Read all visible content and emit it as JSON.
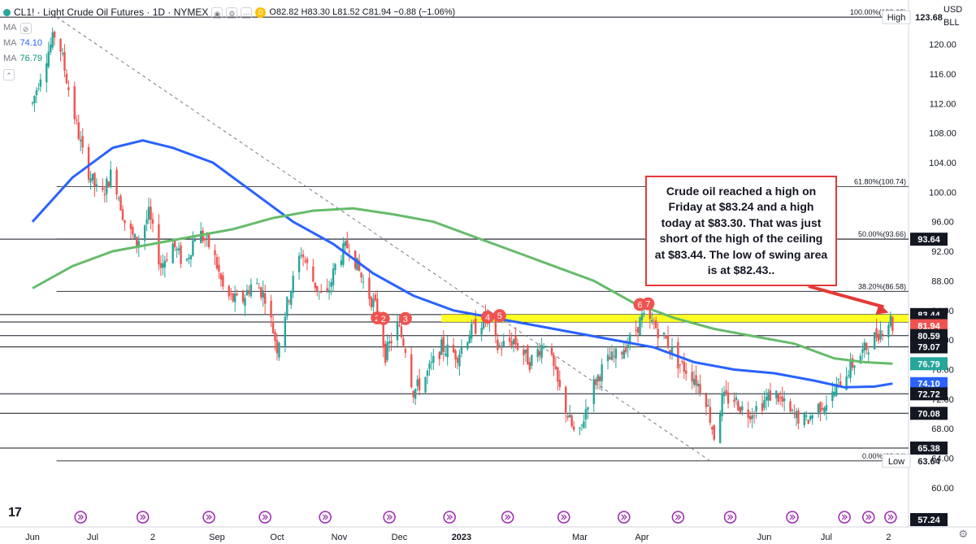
{
  "header": {
    "symbol": "CL1! · Light Crude Oil Futures · 1D · NYMEX",
    "ohlc": "O82.82 H83.30 L81.52 C81.94 −0.88 (−1.06%)",
    "open": "O82.82",
    "high": "H83.30",
    "low": "L81.52",
    "close": "C81.94",
    "change": "−0.88 (−1.06%)",
    "badge": "D"
  },
  "indicators": [
    {
      "label": "MA",
      "value": ""
    },
    {
      "label": "MA",
      "value": "74.10"
    },
    {
      "label": "MA",
      "value": "76.79"
    }
  ],
  "currency": "USD",
  "unit": "BLL",
  "annotation": "Crude oil reached a high on Friday at $83.24 and a high today at $83.30. That was just short of the high of the ceiling at $83.44.   The  low of swing area is at $82.43..",
  "colors": {
    "up": "#26a69a",
    "down": "#ef5350",
    "ma_blue": "#2962ff",
    "ma_green": "#66bb6a",
    "zone": "#ffff00",
    "annotation_border": "#e53935",
    "level_label_bg": "#131722"
  },
  "chart_data": {
    "type": "candlestick",
    "ylim": [
      57.24,
      126
    ],
    "y_ticks": [
      60,
      64,
      68,
      72,
      76,
      80,
      84,
      88,
      92,
      96,
      100,
      104,
      108,
      112,
      116,
      120
    ],
    "y_tick_labels": [
      "60.00",
      "64.00",
      "68.00",
      "72.00",
      "76.00",
      "80.00",
      "84.00",
      "88.00",
      "92.00",
      "96.00",
      "100.00",
      "104.00",
      "108.00",
      "112.00",
      "116.00",
      "120.00"
    ],
    "x_labels": [
      "Jun",
      "Jul",
      "2",
      "Sep",
      "Oct",
      "Nov",
      "Dec",
      "2023",
      "Mar",
      "Apr",
      "Jun",
      "Jul",
      "2"
    ],
    "x_label_days": [
      0,
      30,
      60,
      92,
      122,
      153,
      183,
      214,
      273,
      304,
      365,
      396,
      427
    ],
    "last_day": 429,
    "price_path": [
      [
        0,
        112
      ],
      [
        5,
        117
      ],
      [
        12,
        122
      ],
      [
        18,
        114
      ],
      [
        26,
        104
      ],
      [
        34,
        99
      ],
      [
        40,
        103
      ],
      [
        46,
        96
      ],
      [
        52,
        93
      ],
      [
        58,
        97
      ],
      [
        64,
        90
      ],
      [
        70,
        93
      ],
      [
        76,
        90
      ],
      [
        82,
        95
      ],
      [
        90,
        92
      ],
      [
        96,
        86
      ],
      [
        104,
        85
      ],
      [
        110,
        88
      ],
      [
        116,
        86
      ],
      [
        122,
        79
      ],
      [
        128,
        86
      ],
      [
        134,
        92
      ],
      [
        140,
        88
      ],
      [
        146,
        85
      ],
      [
        152,
        91
      ],
      [
        158,
        93
      ],
      [
        166,
        87
      ],
      [
        172,
        84
      ],
      [
        176,
        78
      ],
      [
        182,
        82
      ],
      [
        186,
        79
      ],
      [
        190,
        73
      ],
      [
        196,
        75
      ],
      [
        204,
        79
      ],
      [
        212,
        78
      ],
      [
        218,
        81
      ],
      [
        226,
        83
      ],
      [
        232,
        79
      ],
      [
        240,
        80
      ],
      [
        248,
        77
      ],
      [
        256,
        80
      ],
      [
        262,
        74
      ],
      [
        268,
        69
      ],
      [
        272,
        66
      ],
      [
        278,
        73
      ],
      [
        286,
        77
      ],
      [
        292,
        78
      ],
      [
        298,
        80
      ],
      [
        304,
        83
      ],
      [
        310,
        82
      ],
      [
        316,
        80
      ],
      [
        322,
        77
      ],
      [
        330,
        75
      ],
      [
        336,
        72
      ],
      [
        340,
        67
      ],
      [
        344,
        72
      ],
      [
        350,
        72
      ],
      [
        356,
        70
      ],
      [
        362,
        71
      ],
      [
        370,
        73
      ],
      [
        378,
        70
      ],
      [
        386,
        69
      ],
      [
        392,
        71
      ],
      [
        398,
        72
      ],
      [
        404,
        75
      ],
      [
        410,
        77
      ],
      [
        416,
        79
      ],
      [
        422,
        81
      ],
      [
        428,
        82.8
      ],
      [
        429,
        81.9
      ]
    ],
    "series": [
      {
        "name": "MA",
        "value_label": "74.10",
        "color": "#2962ff",
        "points": [
          [
            0,
            96
          ],
          [
            20,
            102
          ],
          [
            40,
            106
          ],
          [
            55,
            107
          ],
          [
            70,
            106
          ],
          [
            90,
            104
          ],
          [
            110,
            100
          ],
          [
            130,
            96
          ],
          [
            150,
            93
          ],
          [
            170,
            89
          ],
          [
            190,
            86
          ],
          [
            210,
            84
          ],
          [
            230,
            83
          ],
          [
            250,
            82
          ],
          [
            270,
            81
          ],
          [
            290,
            80
          ],
          [
            310,
            79
          ],
          [
            330,
            77
          ],
          [
            350,
            76
          ],
          [
            370,
            75.5
          ],
          [
            390,
            74.5
          ],
          [
            405,
            73.6
          ],
          [
            420,
            73.7
          ],
          [
            429,
            74.1
          ]
        ]
      },
      {
        "name": "MA",
        "value_label": "76.79",
        "color": "#66bb6a",
        "points": [
          [
            0,
            87
          ],
          [
            20,
            90
          ],
          [
            40,
            92
          ],
          [
            60,
            93
          ],
          [
            80,
            94
          ],
          [
            100,
            95
          ],
          [
            120,
            96.5
          ],
          [
            140,
            97.5
          ],
          [
            160,
            97.8
          ],
          [
            180,
            97
          ],
          [
            200,
            96
          ],
          [
            220,
            94
          ],
          [
            240,
            92
          ],
          [
            260,
            90
          ],
          [
            280,
            88
          ],
          [
            300,
            85
          ],
          [
            320,
            83
          ],
          [
            340,
            81.5
          ],
          [
            360,
            80.5
          ],
          [
            380,
            79.5
          ],
          [
            400,
            77.5
          ],
          [
            415,
            77
          ],
          [
            429,
            76.8
          ]
        ]
      }
    ],
    "horizontal_levels": [
      123.68,
      93.64,
      83.44,
      82.43,
      80.59,
      79.07,
      72.72,
      70.08,
      65.38
    ],
    "right_labels": [
      {
        "value": 123.68,
        "text": "123.68",
        "style": "plain",
        "tag": "High"
      },
      {
        "value": 93.64,
        "text": "93.64",
        "style": "dark"
      },
      {
        "value": 83.44,
        "text": "83.44",
        "style": "dark"
      },
      {
        "value": 82.43,
        "text": "82.43",
        "style": "dark"
      },
      {
        "value": 81.94,
        "text": "81.94",
        "style": "red"
      },
      {
        "value": 80.59,
        "text": "80.59",
        "style": "dark"
      },
      {
        "value": 79.07,
        "text": "79.07",
        "style": "dark"
      },
      {
        "value": 76.79,
        "text": "76.79",
        "style": "green"
      },
      {
        "value": 74.1,
        "text": "74.10",
        "style": "blue"
      },
      {
        "value": 72.72,
        "text": "72.72",
        "style": "dark"
      },
      {
        "value": 70.08,
        "text": "70.08",
        "style": "dark"
      },
      {
        "value": 65.38,
        "text": "65.38",
        "style": "dark"
      },
      {
        "value": 63.64,
        "text": "63.64",
        "style": "plain",
        "tag": "Low"
      },
      {
        "value": 57.24,
        "text": "57.24",
        "style": "dark"
      }
    ],
    "fib_levels": [
      {
        "value": 123.68,
        "label": "100.00%(123.68)"
      },
      {
        "value": 100.74,
        "label": "61.80%(100.74)"
      },
      {
        "value": 93.66,
        "label": "50.00%(93.66)"
      },
      {
        "value": 86.58,
        "label": "38.20%(86.58)"
      },
      {
        "value": 63.64,
        "label": "0.00%(63.64)"
      }
    ],
    "fib_range_days": [
      12,
      429
    ],
    "zone": {
      "top": 83.44,
      "bottom": 82.43,
      "from_day": 204,
      "to_day": 429
    },
    "trendline": {
      "from": [
        12,
        123.68
      ],
      "to": [
        338,
        63.64
      ]
    },
    "markers": [
      {
        "label": "2",
        "day": 172,
        "value": 83.0
      },
      {
        "label": "2",
        "day": 175,
        "value": 82.9
      },
      {
        "label": "3",
        "day": 186,
        "value": 82.9
      },
      {
        "label": "4",
        "day": 227,
        "value": 83.1
      },
      {
        "label": "5",
        "day": 233,
        "value": 83.3
      },
      {
        "label": "6",
        "day": 303,
        "value": 84.8
      },
      {
        "label": "7",
        "day": 307,
        "value": 84.9
      }
    ],
    "arrow": {
      "to_day": 427,
      "to_value": 83.7
    },
    "event_days": [
      24,
      55,
      88,
      116,
      146,
      178,
      208,
      237,
      265,
      295,
      322,
      348,
      379,
      405,
      417,
      428,
      439
    ]
  }
}
